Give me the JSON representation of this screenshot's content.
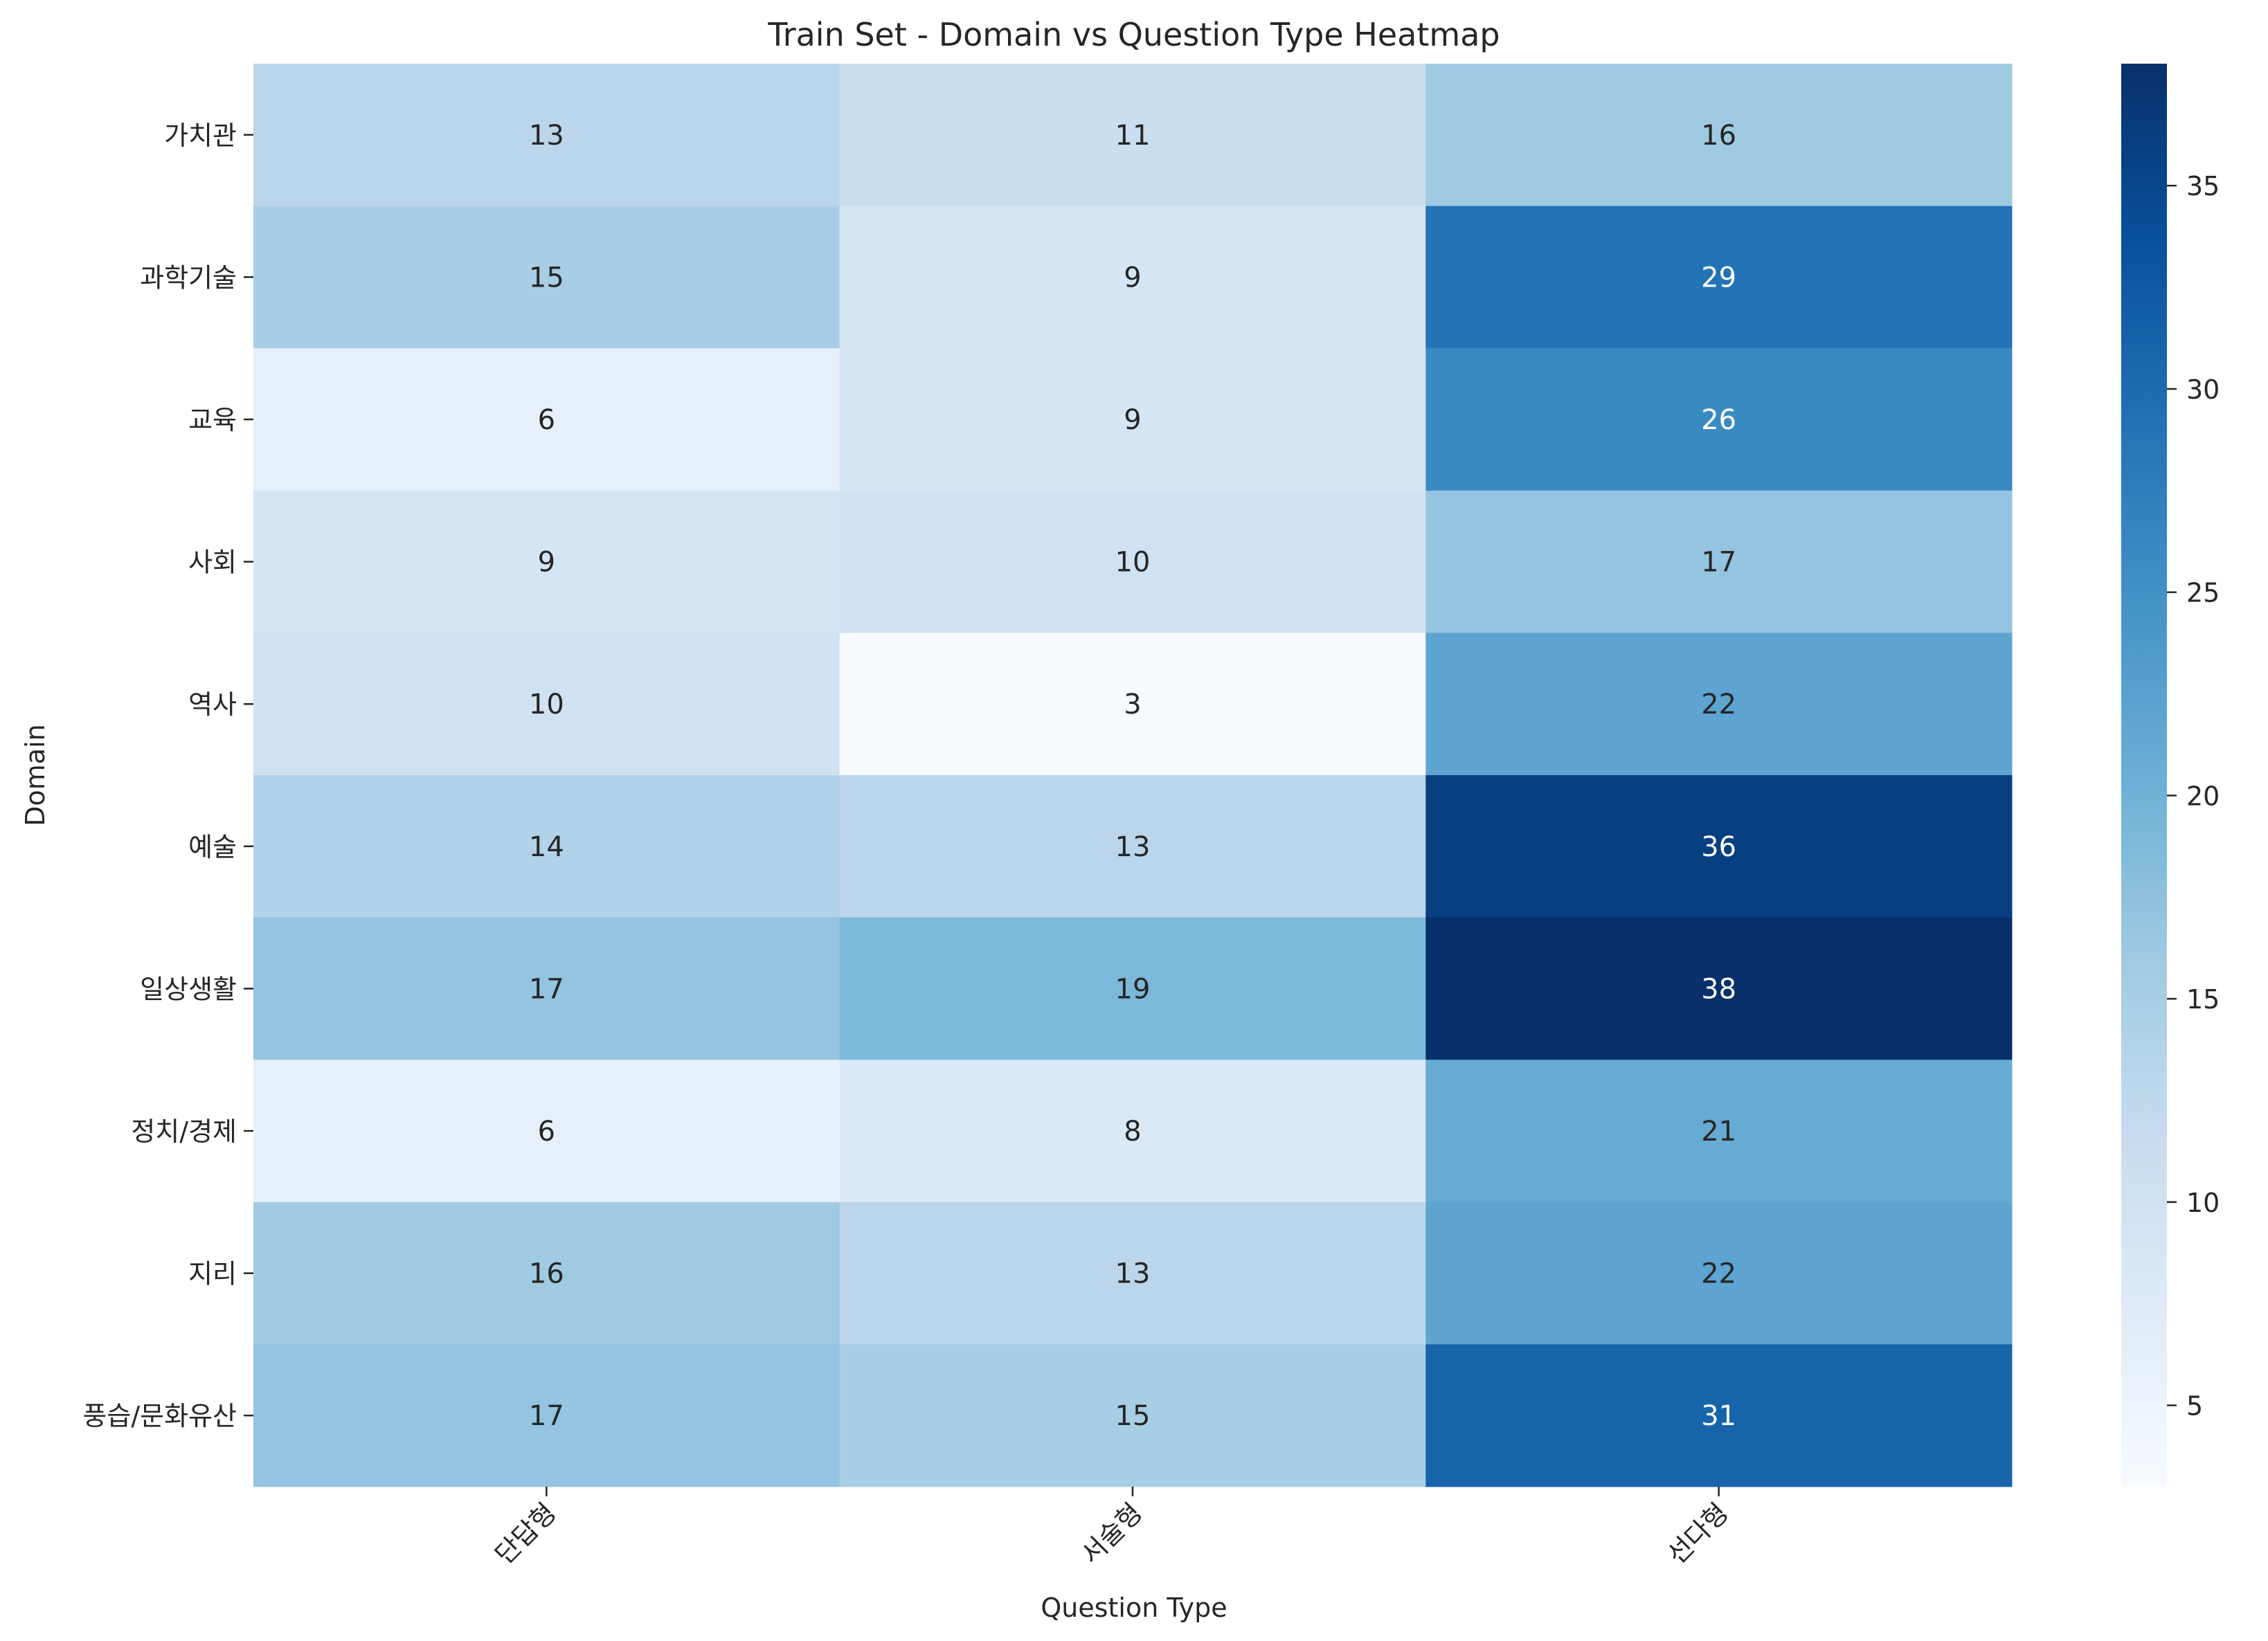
{
  "chart_data": {
    "type": "heatmap",
    "title": "Train Set - Domain vs Question Type Heatmap",
    "xlabel": "Question Type",
    "ylabel": "Domain",
    "columns": [
      "단답형",
      "서술형",
      "선다형"
    ],
    "rows": [
      "가치관",
      "과학기술",
      "교육",
      "사회",
      "역사",
      "예술",
      "일상생활",
      "정치/경제",
      "지리",
      "풍습/문화유산"
    ],
    "values": [
      [
        13,
        11,
        16
      ],
      [
        15,
        9,
        29
      ],
      [
        6,
        9,
        26
      ],
      [
        9,
        10,
        17
      ],
      [
        10,
        3,
        22
      ],
      [
        14,
        13,
        36
      ],
      [
        17,
        19,
        38
      ],
      [
        6,
        8,
        21
      ],
      [
        16,
        13,
        22
      ],
      [
        17,
        15,
        31
      ]
    ],
    "colorbar": {
      "min": 3,
      "max": 38,
      "ticks": [
        5,
        10,
        15,
        20,
        25,
        30,
        35
      ]
    },
    "colormap": [
      "#f7fbff",
      "#deebf7",
      "#c6dbef",
      "#9ecae1",
      "#6baed6",
      "#4292c6",
      "#2171b5",
      "#08519c",
      "#08306b"
    ],
    "annotated": true,
    "grid": false,
    "x_tick_rotation": "45 degrees"
  }
}
